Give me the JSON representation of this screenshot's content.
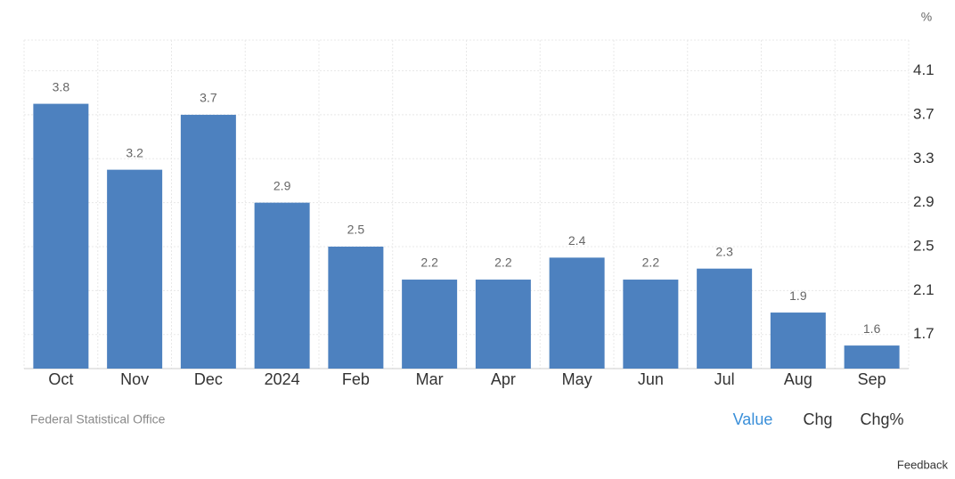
{
  "chart_data": {
    "type": "bar",
    "y_unit": "%",
    "categories": [
      "Oct",
      "Nov",
      "Dec",
      "2024",
      "Feb",
      "Mar",
      "Apr",
      "May",
      "Jun",
      "Jul",
      "Aug",
      "Sep"
    ],
    "values": [
      3.8,
      3.2,
      3.7,
      2.9,
      2.5,
      2.2,
      2.2,
      2.4,
      2.2,
      2.3,
      1.9,
      1.6
    ],
    "color": "#4d81bf",
    "ylim": [
      1.39,
      4.38
    ],
    "yticks": [
      1.7,
      2.1,
      2.5,
      2.9,
      3.3,
      3.7,
      4.1
    ],
    "grid": true,
    "source": "Federal Statistical Office",
    "buttons": [
      "Value",
      "Chg",
      "Chg%"
    ],
    "active_button": "Value",
    "feedback": "Feedback"
  }
}
